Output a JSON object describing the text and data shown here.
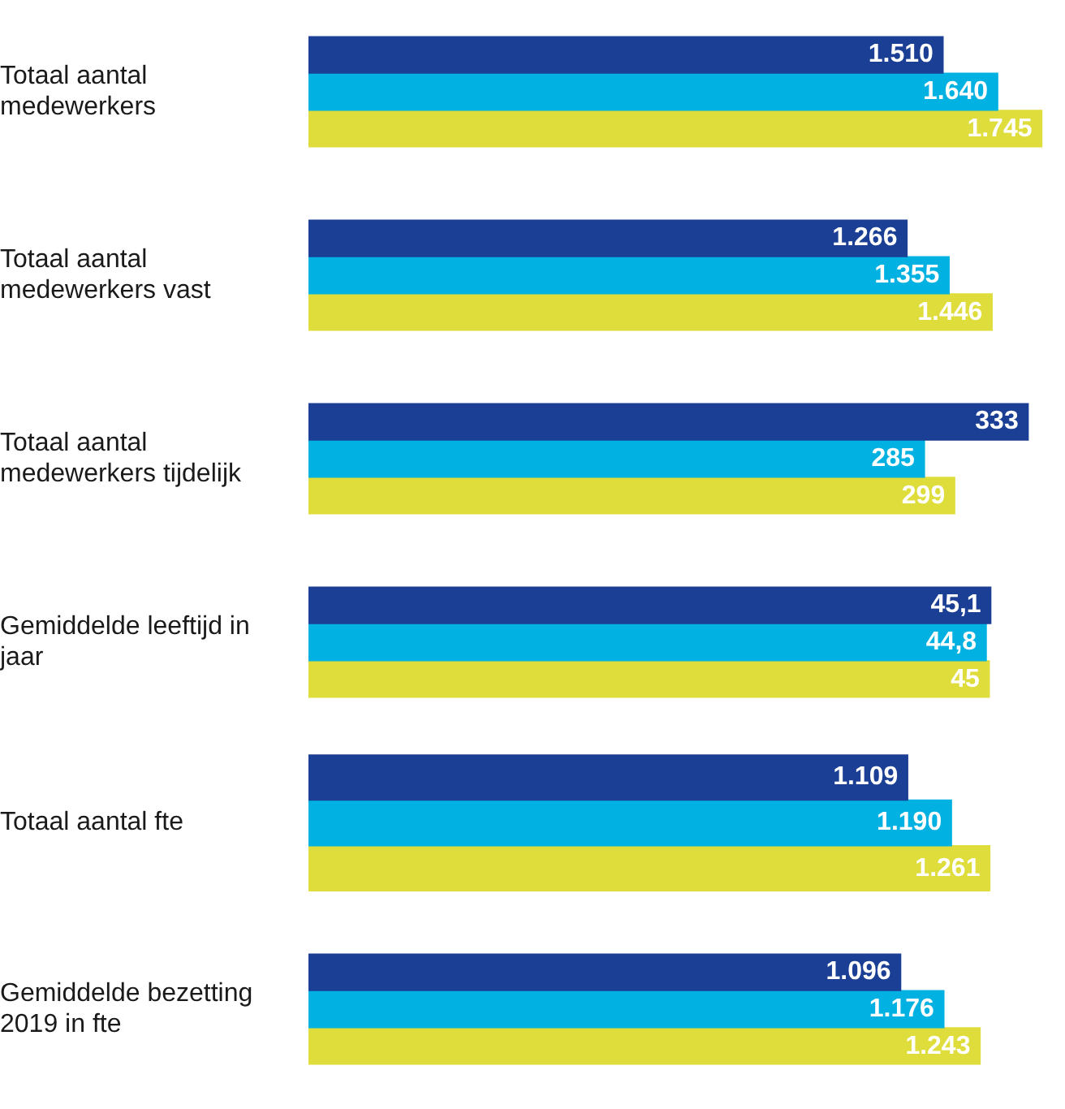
{
  "chart_data": [
    {
      "type": "bar",
      "orientation": "horizontal",
      "categories": [
        "Totaal aantal medewerkers"
      ],
      "series": [
        {
          "color": "#1b3f94",
          "values": [
            1510
          ],
          "value_labels": [
            "1.510"
          ]
        },
        {
          "color": "#00b1e2",
          "values": [
            1640
          ],
          "value_labels": [
            "1.640"
          ]
        },
        {
          "color": "#dedd3b",
          "values": [
            1745
          ],
          "value_labels": [
            "1.745"
          ]
        }
      ]
    },
    {
      "type": "bar",
      "orientation": "horizontal",
      "categories": [
        "Totaal aantal medewerkers vast"
      ],
      "series": [
        {
          "color": "#1b3f94",
          "values": [
            1266
          ],
          "value_labels": [
            "1.266"
          ]
        },
        {
          "color": "#00b1e2",
          "values": [
            1355
          ],
          "value_labels": [
            "1.355"
          ]
        },
        {
          "color": "#dedd3b",
          "values": [
            1446
          ],
          "value_labels": [
            "1.446"
          ]
        }
      ]
    },
    {
      "type": "bar",
      "orientation": "horizontal",
      "categories": [
        "Totaal aantal medewerkers tijdelijk"
      ],
      "series": [
        {
          "color": "#1b3f94",
          "values": [
            333
          ],
          "value_labels": [
            "333"
          ]
        },
        {
          "color": "#00b1e2",
          "values": [
            285
          ],
          "value_labels": [
            "285"
          ]
        },
        {
          "color": "#dedd3b",
          "values": [
            299
          ],
          "value_labels": [
            "299"
          ]
        }
      ]
    },
    {
      "type": "bar",
      "orientation": "horizontal",
      "categories": [
        "Gemiddelde leeftijd in jaar"
      ],
      "series": [
        {
          "color": "#1b3f94",
          "values": [
            45.1
          ],
          "value_labels": [
            "45,1"
          ]
        },
        {
          "color": "#00b1e2",
          "values": [
            44.8
          ],
          "value_labels": [
            "44,8"
          ]
        },
        {
          "color": "#dedd3b",
          "values": [
            45
          ],
          "value_labels": [
            "45"
          ]
        }
      ]
    },
    {
      "type": "bar",
      "orientation": "horizontal",
      "categories": [
        "Totaal aantal fte"
      ],
      "series": [
        {
          "color": "#1b3f94",
          "values": [
            1109
          ],
          "value_labels": [
            "1.109"
          ]
        },
        {
          "color": "#00b1e2",
          "values": [
            1190
          ],
          "value_labels": [
            "1.190"
          ]
        },
        {
          "color": "#dedd3b",
          "values": [
            1261
          ],
          "value_labels": [
            "1.261"
          ]
        }
      ]
    },
    {
      "type": "bar",
      "orientation": "horizontal",
      "categories": [
        "Gemiddelde bezetting 2019 in fte"
      ],
      "series": [
        {
          "color": "#1b3f94",
          "values": [
            1096
          ],
          "value_labels": [
            "1.096"
          ]
        },
        {
          "color": "#00b1e2",
          "values": [
            1176
          ],
          "value_labels": [
            "1.176"
          ]
        },
        {
          "color": "#dedd3b",
          "values": [
            1243
          ],
          "value_labels": [
            "1.243"
          ]
        }
      ]
    }
  ]
}
